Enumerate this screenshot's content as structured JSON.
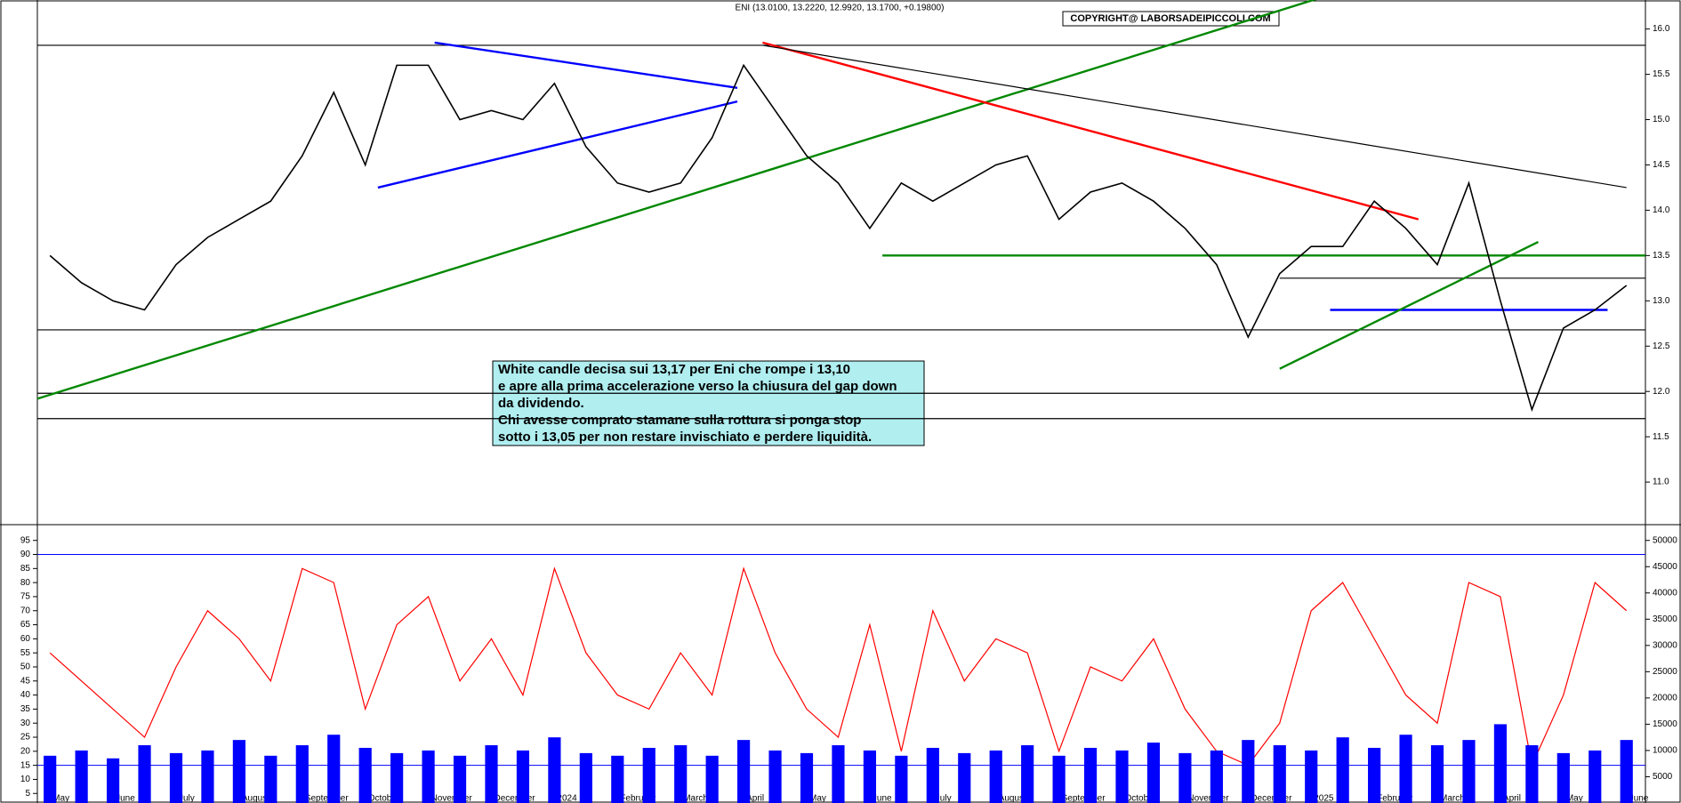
{
  "chart_data": [
    {
      "type": "line",
      "title": "ENI (13.0100, 13.2220, 12.9920, 13.1700, +0.19800)",
      "copyright": "COPYRIGHT@ LABORSADEIPICCOLI.COM",
      "annotation": [
        "White candle decisa sui 13,17 per Eni che rompe i 13,10",
        "e apre alla prima accelerazione verso la chiusura del gap down",
        "da dividendo.",
        "Chi avesse comprato stamane sulla rottura si ponga stop",
        "sotto i 13,05 per non restare invischiato e perdere liquidità."
      ],
      "x": [
        0,
        0.5,
        1,
        1.5,
        2,
        2.5,
        3,
        3.5,
        4,
        4.5,
        5,
        5.5,
        6,
        6.5,
        7,
        7.5,
        8,
        8.5,
        9,
        9.5,
        10,
        10.5,
        11,
        11.5,
        12,
        12.5,
        13,
        13.5,
        14,
        14.5,
        15,
        15.5,
        16,
        16.5,
        17,
        17.5,
        18,
        18.5,
        19,
        19.5,
        20,
        20.5,
        21,
        21.5,
        22,
        22.5,
        23,
        23.5,
        24,
        24.5,
        25
      ],
      "values": [
        13.5,
        13.2,
        13.0,
        12.9,
        13.4,
        13.7,
        13.9,
        14.1,
        14.6,
        15.3,
        14.5,
        15.6,
        15.6,
        15.0,
        15.1,
        15.0,
        15.4,
        14.7,
        14.3,
        14.2,
        14.3,
        14.8,
        15.6,
        15.1,
        14.6,
        14.3,
        13.8,
        14.3,
        14.1,
        14.3,
        14.5,
        14.6,
        13.9,
        14.2,
        14.3,
        14.1,
        13.8,
        13.4,
        12.6,
        13.3,
        13.6,
        13.6,
        14.1,
        13.8,
        13.4,
        14.3,
        13.0,
        11.8,
        12.7,
        12.9,
        13.17
      ],
      "color": "#000000",
      "xlim": [
        -0.2,
        25.3
      ],
      "ylim": [
        10.53,
        16.32
      ],
      "yticks": [
        {
          "value": 11,
          "label": "11.0"
        },
        11.5,
        {
          "value": 12,
          "label": "12.0"
        },
        12.5,
        {
          "value": 13,
          "label": "13.0"
        },
        13.5,
        {
          "value": 14,
          "label": "14.0"
        },
        14.5,
        {
          "value": 15,
          "label": "15.0"
        },
        15.5,
        {
          "value": 16,
          "label": "16.0"
        }
      ],
      "lines": [
        {
          "x": [
            -0.2,
            25.3
          ],
          "y": [
            15.82,
            15.82
          ],
          "color": "#000000"
        },
        {
          "x": [
            -0.2,
            25.3
          ],
          "y": [
            12.68,
            12.68
          ],
          "color": "#000000"
        },
        {
          "x": [
            -0.2,
            25.3
          ],
          "y": [
            11.98,
            11.98
          ],
          "color": "#000000"
        },
        {
          "x": [
            -0.2,
            25.3
          ],
          "y": [
            11.7,
            11.7
          ],
          "color": "#000000"
        },
        {
          "x": [
            19.5,
            25.3
          ],
          "y": [
            13.25,
            13.25
          ],
          "color": "#000000"
        },
        {
          "x": [
            20.3,
            24.7
          ],
          "y": [
            12.9,
            12.9
          ],
          "color": "#0000ff"
        },
        {
          "x": [
            13.2,
            25.3
          ],
          "y": [
            13.5,
            13.5
          ],
          "color": "#008800"
        },
        {
          "x": [
            -0.2,
            20.4
          ],
          "y": [
            11.92,
            16.4
          ],
          "color": "#008800"
        },
        {
          "x": [
            19.5,
            23.6
          ],
          "y": [
            12.25,
            13.65
          ],
          "color": "#008800"
        },
        {
          "x": [
            11.3,
            21.7
          ],
          "y": [
            15.85,
            13.9
          ],
          "color": "#ff0000"
        },
        {
          "x": [
            11.3,
            25.0
          ],
          "y": [
            15.82,
            14.25
          ],
          "color": "#000000"
        },
        {
          "x": [
            6.1,
            10.9
          ],
          "y": [
            15.85,
            15.35
          ],
          "color": "#0000ff"
        },
        {
          "x": [
            5.2,
            10.9
          ],
          "y": [
            14.25,
            15.2
          ],
          "color": "#0000ff"
        }
      ]
    },
    {
      "type": "combo",
      "x": [
        0,
        0.5,
        1,
        1.5,
        2,
        2.5,
        3,
        3.5,
        4,
        4.5,
        5,
        5.5,
        6,
        6.5,
        7,
        7.5,
        8,
        8.5,
        9,
        9.5,
        10,
        10.5,
        11,
        11.5,
        12,
        12.5,
        13,
        13.5,
        14,
        14.5,
        15,
        15.5,
        16,
        16.5,
        17,
        17.5,
        18,
        18.5,
        19,
        19.5,
        20,
        20.5,
        21,
        21.5,
        22,
        22.5,
        23,
        23.5,
        24,
        24.5,
        25
      ],
      "xlim": [
        -0.2,
        25.3
      ],
      "xticks": [
        {
          "value": 0,
          "label": "May"
        },
        {
          "value": 1,
          "label": "June"
        },
        {
          "value": 2,
          "label": "July"
        },
        {
          "value": 3,
          "label": "August"
        },
        {
          "value": 4,
          "label": "September"
        },
        {
          "value": 5,
          "label": "October"
        },
        {
          "value": 6,
          "label": "November"
        },
        {
          "value": 7,
          "label": "December"
        },
        {
          "value": 8,
          "label": "2024"
        },
        {
          "value": 9,
          "label": "February"
        },
        {
          "value": 10,
          "label": "March"
        },
        {
          "value": 11,
          "label": "April"
        },
        {
          "value": 12,
          "label": "May"
        },
        {
          "value": 13,
          "label": "June"
        },
        {
          "value": 14,
          "label": "July"
        },
        {
          "value": 15,
          "label": "August"
        },
        {
          "value": 16,
          "label": "September"
        },
        {
          "value": 17,
          "label": "October"
        },
        {
          "value": 18,
          "label": "November"
        },
        {
          "value": 19,
          "label": "December"
        },
        {
          "value": 20,
          "label": "2025"
        },
        {
          "value": 21,
          "label": "February"
        },
        {
          "value": 22,
          "label": "March"
        },
        {
          "value": 23,
          "label": "April"
        },
        {
          "value": 24,
          "label": "May"
        },
        {
          "value": 25,
          "label": "June"
        }
      ],
      "ylim": [
        1.6,
        100.6
      ],
      "yticks": [
        5,
        10,
        15,
        20,
        25,
        30,
        35,
        40,
        45,
        50,
        55,
        60,
        65,
        70,
        75,
        80,
        85,
        90,
        95
      ],
      "y2lim": [
        0,
        53000
      ],
      "y2ticks": [
        5000,
        10000,
        15000,
        20000,
        25000,
        30000,
        35000,
        40000,
        45000,
        50000
      ],
      "hlines": [
        90,
        15
      ],
      "hline_color": "#0000ff",
      "series": [
        {
          "color": "#ff0000",
          "values": [
            55,
            45,
            35,
            25,
            50,
            70,
            60,
            45,
            85,
            80,
            35,
            65,
            75,
            45,
            60,
            40,
            85,
            55,
            40,
            35,
            55,
            40,
            85,
            55,
            35,
            25,
            65,
            20,
            70,
            45,
            60,
            55,
            20,
            50,
            45,
            60,
            35,
            20,
            15,
            30,
            70,
            80,
            60,
            40,
            30,
            80,
            75,
            15,
            40,
            80,
            70
          ]
        },
        {
          "color": "#0000ff",
          "axis": "y2",
          "values": [
            9000,
            10000,
            8500,
            11000,
            9500,
            10000,
            12000,
            9000,
            11000,
            13000,
            10500,
            9500,
            10000,
            9000,
            11000,
            10000,
            12500,
            9500,
            9000,
            10500,
            11000,
            9000,
            12000,
            10000,
            9500,
            11000,
            10000,
            9000,
            10500,
            9500,
            10000,
            11000,
            9000,
            10500,
            10000,
            11500,
            9500,
            10000,
            12000,
            11000,
            10000,
            12500,
            10500,
            13000,
            11000,
            12000,
            15000,
            11000,
            9500,
            10000,
            12000
          ]
        }
      ]
    }
  ]
}
